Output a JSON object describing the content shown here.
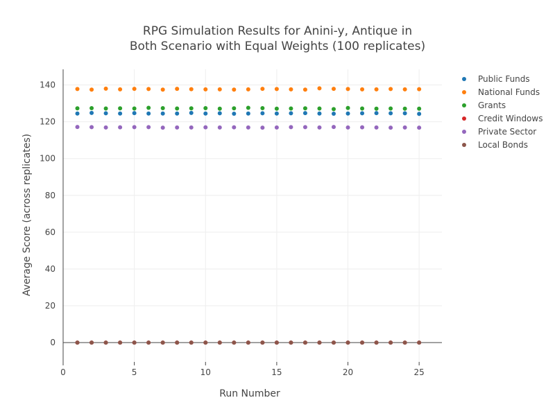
{
  "chart_data": {
    "type": "scatter",
    "title_lines": [
      "RPG Simulation Results for Anini-y, Antique in",
      "Both Scenario with Equal Weights (100 replicates)"
    ],
    "xlabel": "Run Number",
    "ylabel": "Average Score (across replicates)",
    "xlim": [
      0,
      26.6
    ],
    "ylim": [
      -10.5,
      148.5
    ],
    "x_ticks": [
      0,
      5,
      10,
      15,
      20,
      25
    ],
    "y_ticks": [
      0,
      20,
      40,
      60,
      80,
      100,
      120,
      140
    ],
    "grid": true,
    "legend_position": "right",
    "x": [
      1,
      2,
      3,
      4,
      5,
      6,
      7,
      8,
      9,
      10,
      11,
      12,
      13,
      14,
      15,
      16,
      17,
      18,
      19,
      20,
      21,
      22,
      23,
      24,
      25
    ],
    "series": [
      {
        "name": "Public Funds",
        "color": "#1f77b4",
        "values": [
          124.5,
          124.8,
          124.6,
          124.5,
          124.7,
          124.5,
          124.5,
          124.5,
          124.8,
          124.5,
          124.6,
          124.4,
          124.5,
          124.6,
          124.5,
          124.6,
          124.7,
          124.5,
          124.4,
          124.5,
          124.6,
          124.7,
          124.6,
          124.6,
          124.3
        ]
      },
      {
        "name": "National Funds",
        "color": "#ff7f0e",
        "values": [
          137.8,
          137.5,
          138.0,
          137.6,
          137.9,
          137.8,
          137.5,
          137.9,
          137.7,
          137.6,
          137.6,
          137.5,
          137.6,
          137.9,
          137.8,
          137.6,
          137.5,
          138.2,
          137.9,
          137.8,
          137.6,
          137.6,
          137.8,
          137.6,
          137.7
        ]
      },
      {
        "name": "Grants",
        "color": "#2ca02c",
        "values": [
          127.3,
          127.4,
          127.2,
          127.3,
          127.2,
          127.6,
          127.4,
          127.2,
          127.3,
          127.4,
          127.1,
          127.3,
          127.6,
          127.4,
          127.1,
          127.2,
          127.3,
          127.2,
          126.9,
          127.5,
          127.2,
          127.1,
          127.2,
          127.1,
          127.1
        ]
      },
      {
        "name": "Credit Windows",
        "color": "#d62728",
        "values": [
          0,
          0,
          0,
          0,
          0,
          0,
          0,
          0,
          0,
          0,
          0,
          0,
          0,
          0,
          0,
          0,
          0,
          0,
          0,
          0,
          0,
          0,
          0,
          0,
          0
        ]
      },
      {
        "name": "Private Sector",
        "color": "#9467bd",
        "values": [
          117.2,
          117.1,
          116.9,
          117.0,
          117.1,
          117.1,
          116.8,
          116.9,
          116.9,
          117.0,
          116.9,
          117.0,
          116.9,
          116.8,
          116.9,
          117.1,
          117.1,
          116.9,
          117.2,
          116.9,
          117.0,
          116.9,
          116.8,
          116.9,
          116.8
        ]
      },
      {
        "name": "Local Bonds",
        "color": "#8c564b",
        "values": [
          0,
          0,
          0,
          0,
          0,
          0,
          0,
          0,
          0,
          0,
          0,
          0,
          0,
          0,
          0,
          0,
          0,
          0,
          0,
          0,
          0,
          0,
          0,
          0,
          0
        ]
      }
    ]
  }
}
